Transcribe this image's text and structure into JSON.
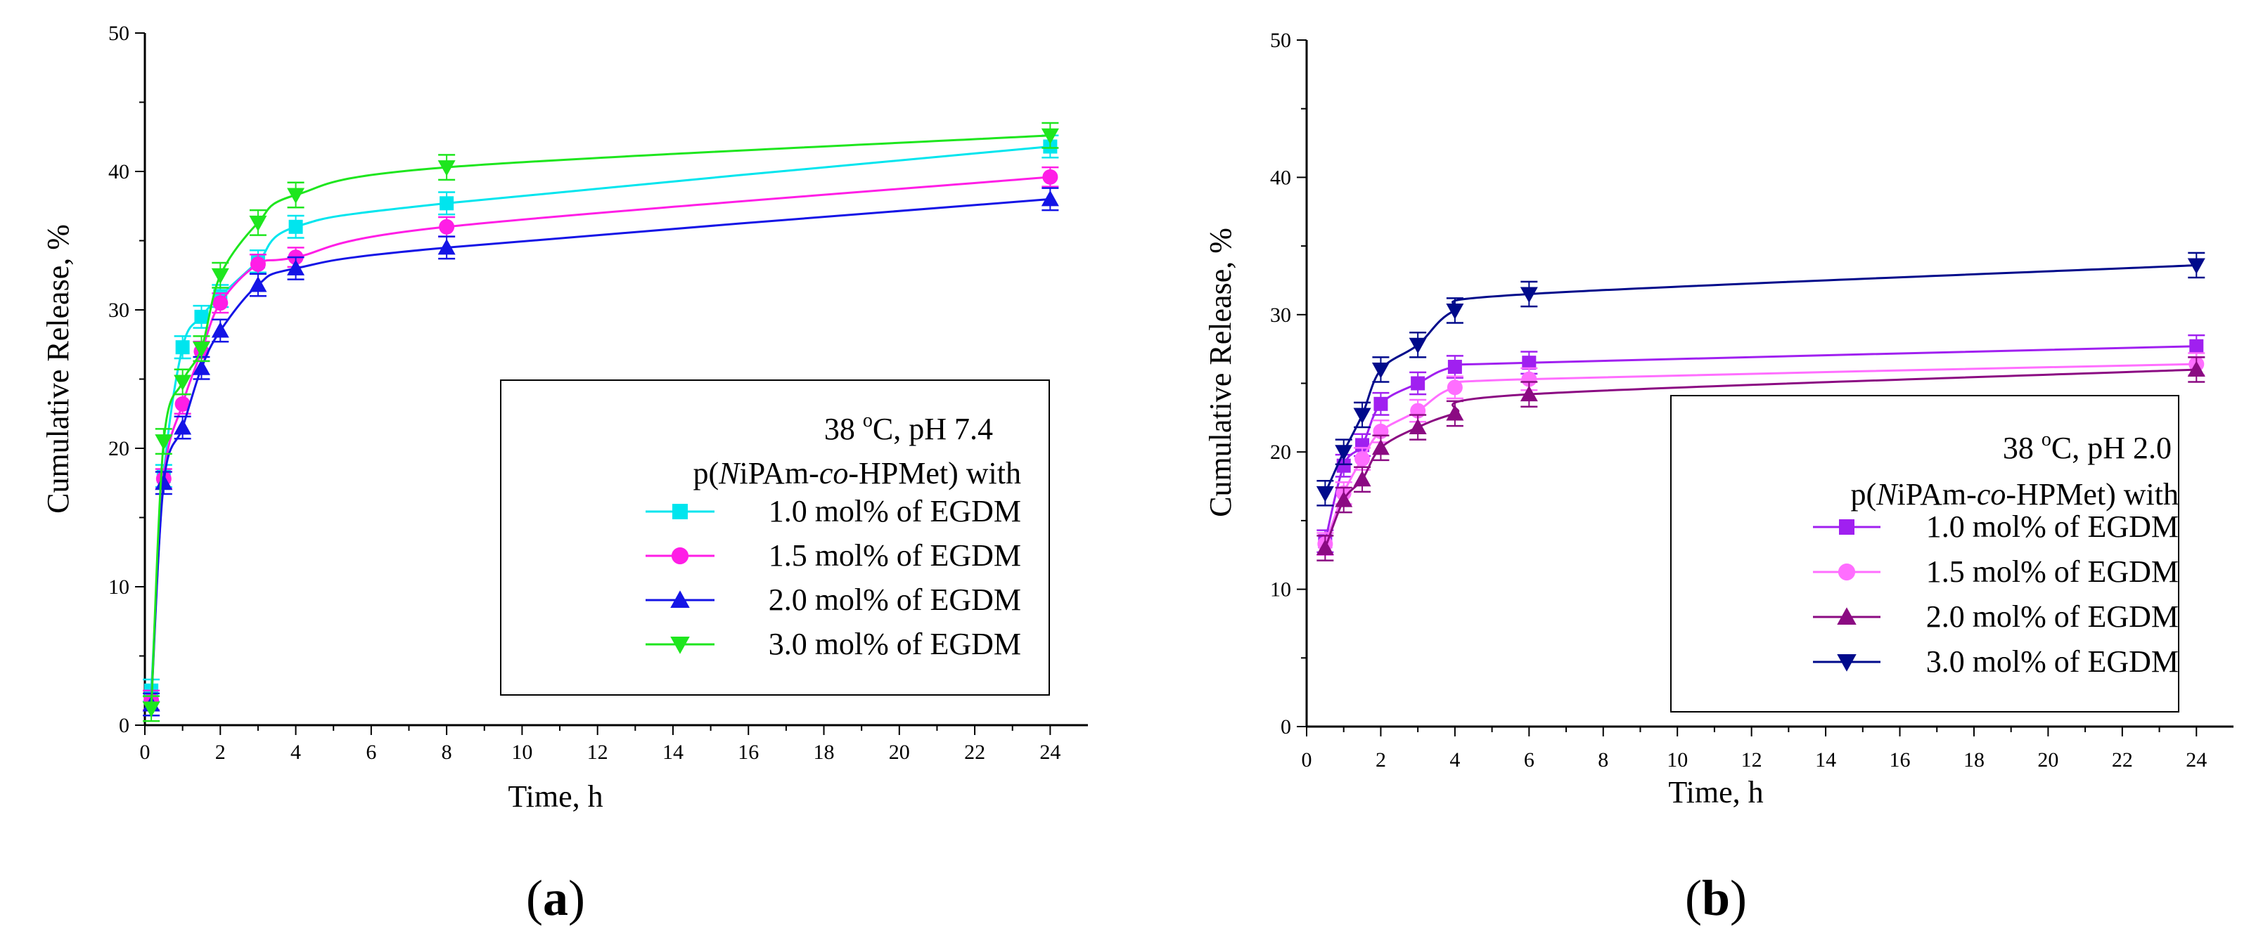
{
  "chart_data": [
    {
      "type": "line",
      "panel_label": "(a)",
      "panel_letter": "a",
      "xlabel": "Time, h",
      "ylabel": "Cumulative Release, %",
      "xlim": [
        0,
        25
      ],
      "ylim": [
        0,
        50
      ],
      "x_ticks": [
        0,
        2,
        4,
        6,
        8,
        10,
        12,
        14,
        16,
        18,
        20,
        22,
        24
      ],
      "y_ticks": [
        0,
        10,
        20,
        30,
        40,
        50
      ],
      "legend": {
        "condition_prefix": "38 ",
        "condition_sup": "o",
        "condition_suffix": "C, pH 7.4",
        "polymer_prefix": "p(",
        "polymer_italic1": "N",
        "polymer_mid": "iPAm-",
        "polymer_italic2": "co",
        "polymer_suffix": "-HPMet) with",
        "placement": "lower-right"
      },
      "series": [
        {
          "name": "1.0 mol% of EGDM",
          "color": "#00e5ee",
          "marker": "square",
          "x": [
            0.17,
            0.5,
            1,
            1.5,
            2,
            3,
            4,
            8,
            24
          ],
          "y": [
            2.5,
            18.0,
            27.3,
            29.5,
            31.0,
            33.5,
            36.0,
            37.7,
            41.8
          ],
          "err": [
            0.8,
            0.8,
            0.8,
            0.8,
            0.8,
            0.8,
            0.8,
            0.8,
            0.8
          ]
        },
        {
          "name": "1.5 mol% of EGDM",
          "color": "#ff1ee6",
          "marker": "circle",
          "x": [
            0.17,
            0.5,
            1,
            1.5,
            2,
            3,
            4,
            8,
            24
          ],
          "y": [
            1.8,
            17.8,
            23.2,
            27.0,
            30.5,
            33.3,
            33.8,
            36.0,
            39.6
          ],
          "err": [
            0.7,
            0.7,
            0.7,
            0.7,
            0.7,
            0.7,
            0.7,
            0.7,
            0.7
          ]
        },
        {
          "name": "2.0 mol% of EGDM",
          "color": "#1414e6",
          "marker": "triangle-up",
          "x": [
            0.17,
            0.5,
            1,
            1.5,
            2,
            3,
            4,
            8,
            24
          ],
          "y": [
            1.5,
            17.5,
            21.5,
            25.8,
            28.5,
            31.8,
            33.0,
            34.5,
            38.0
          ],
          "err": [
            0.8,
            0.8,
            0.8,
            0.8,
            0.8,
            0.8,
            0.8,
            0.8,
            0.8
          ]
        },
        {
          "name": "3.0 mol% of EGDM",
          "color": "#1ee61e",
          "marker": "triangle-down",
          "x": [
            0.17,
            0.5,
            1,
            1.5,
            2,
            3,
            4,
            8,
            24
          ],
          "y": [
            1.2,
            20.5,
            24.8,
            27.2,
            32.5,
            36.3,
            38.3,
            40.3,
            42.6
          ],
          "err": [
            0.9,
            0.9,
            0.9,
            0.9,
            0.9,
            0.9,
            0.9,
            0.9,
            0.9
          ]
        }
      ]
    },
    {
      "type": "line",
      "panel_label": "(b)",
      "panel_letter": "b",
      "xlabel": "Time, h",
      "ylabel": "Cumulative Release, %",
      "xlim": [
        0,
        25
      ],
      "ylim": [
        0,
        50
      ],
      "x_ticks": [
        0,
        2,
        4,
        6,
        8,
        10,
        12,
        14,
        16,
        18,
        20,
        22,
        24
      ],
      "y_ticks": [
        0,
        10,
        20,
        30,
        40,
        50
      ],
      "legend": {
        "condition_prefix": "38 ",
        "condition_sup": "o",
        "condition_suffix": "C, pH 2.0",
        "polymer_prefix": "p(",
        "polymer_italic1": "N",
        "polymer_mid": "iPAm-",
        "polymer_italic2": "co",
        "polymer_suffix": "-HPMet) with",
        "placement": "lower-right"
      },
      "series": [
        {
          "name": "1.0 mol% of EGDM",
          "color": "#a020f0",
          "marker": "square",
          "x": [
            0.5,
            1,
            1.5,
            2,
            3,
            4,
            6,
            24
          ],
          "y": [
            13.5,
            19.0,
            20.5,
            23.5,
            25.0,
            26.2,
            26.5,
            27.7
          ],
          "err": [
            0.8,
            0.8,
            0.8,
            0.8,
            0.8,
            0.8,
            0.8,
            0.8
          ]
        },
        {
          "name": "1.5 mol% of EGDM",
          "color": "#ff6eff",
          "marker": "circle",
          "x": [
            0.5,
            1,
            1.5,
            2,
            3,
            4,
            6,
            24
          ],
          "y": [
            13.3,
            17.0,
            19.5,
            21.5,
            23.0,
            24.7,
            25.3,
            26.4
          ],
          "err": [
            0.8,
            0.8,
            0.8,
            0.8,
            0.8,
            0.8,
            0.8,
            0.8
          ]
        },
        {
          "name": "2.0 mol% of EGDM",
          "color": "#8b0a82",
          "marker": "triangle-up",
          "x": [
            0.5,
            1,
            1.5,
            2,
            3,
            4,
            6,
            24
          ],
          "y": [
            13.0,
            16.5,
            18.0,
            20.3,
            21.8,
            22.8,
            24.2,
            26.0
          ],
          "err": [
            0.9,
            0.9,
            0.9,
            0.9,
            0.9,
            0.9,
            0.9,
            0.9
          ]
        },
        {
          "name": "3.0 mol% of EGDM",
          "color": "#000a8b",
          "marker": "triangle-down",
          "x": [
            0.5,
            1,
            1.5,
            2,
            3,
            4,
            6,
            24
          ],
          "y": [
            17.0,
            20.0,
            22.7,
            26.0,
            27.8,
            30.3,
            31.5,
            33.6
          ],
          "err": [
            0.9,
            0.9,
            0.9,
            0.9,
            0.9,
            0.9,
            0.9,
            0.9
          ]
        }
      ]
    }
  ]
}
